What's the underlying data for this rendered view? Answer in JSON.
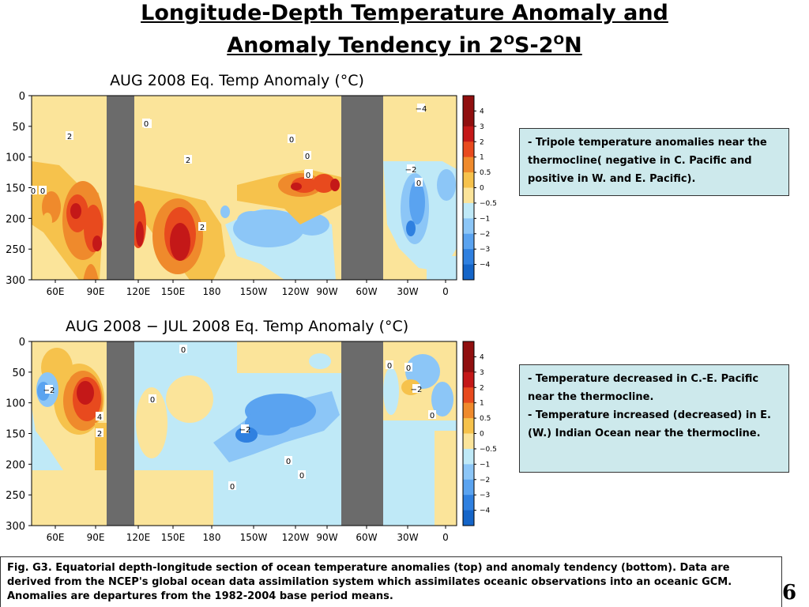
{
  "slide": {
    "title_line1": "Longitude-Depth Temperature Anomaly and",
    "title_line2_prefix": "Anomaly Tendency in 2",
    "title_sup_o1": "O",
    "title_mid": "S-2",
    "title_sup_o2": "O",
    "title_suffix": "N",
    "page_number": "6",
    "caption": "Fig. G3. Equatorial depth-longitude section of ocean temperature anomalies (top) and anomaly tendency (bottom). Data are derived from the NCEP's global ocean data assimilation system which assimilates oceanic observations into an oceanic GCM. Anomalies are departures from the 1982-2004 base period means."
  },
  "notes": {
    "top": [
      "- Tripole temperature anomalies near the thermocline( negative in C. Pacific and positive in W. and E. Pacific)."
    ],
    "bottom": [
      "- Temperature decreased in C.-E. Pacific near the thermocline.",
      "- Temperature increased (decreased) in E. (W.) Indian Ocean near the thermocline."
    ]
  },
  "colors": {
    "land": "#6b6b6b",
    "scale": [
      "#1565c8",
      "#2f80e0",
      "#5aa3f0",
      "#8cc6f7",
      "#bfe9f7",
      "#fbe49a",
      "#f6c24c",
      "#ef8a2c",
      "#e84a1e",
      "#c41818",
      "#900f0f"
    ]
  },
  "chart_data": [
    {
      "type": "heatmap",
      "title": "AUG 2008 Eq. Temp Anomaly (°C)",
      "xlabel": "",
      "ylabel": "",
      "x_ticks": [
        "60E",
        "90E",
        "120E",
        "150E",
        "180",
        "150W",
        "120W",
        "90W",
        "60W",
        "30W",
        "0"
      ],
      "y_ticks": [
        "0",
        "50",
        "100",
        "150",
        "200",
        "250",
        "300"
      ],
      "ylim": [
        0,
        300
      ],
      "colorbar_labels": [
        "4",
        "3",
        "2",
        "1",
        "0.5",
        "0",
        "−0.5",
        "−1",
        "−2",
        "−3",
        "−4"
      ],
      "contour_labels": [
        "2",
        "0",
        "2",
        "0",
        "2",
        "2",
        "0",
        "0",
        "0",
        "0",
        "−4",
        "−2",
        "0",
        "0"
      ],
      "grid": false
    },
    {
      "type": "heatmap",
      "title": "AUG 2008 − JUL 2008 Eq. Temp Anomaly (°C)",
      "xlabel": "",
      "ylabel": "",
      "x_ticks": [
        "60E",
        "90E",
        "120E",
        "150E",
        "180",
        "150W",
        "120W",
        "90W",
        "60W",
        "30W",
        "0"
      ],
      "y_ticks": [
        "0",
        "50",
        "100",
        "150",
        "200",
        "250",
        "300"
      ],
      "ylim": [
        0,
        300
      ],
      "colorbar_labels": [
        "4",
        "3",
        "2",
        "1",
        "0.5",
        "0",
        "−0.5",
        "−1",
        "−2",
        "−3",
        "−4"
      ],
      "contour_labels": [
        "−2",
        "4",
        "2",
        "0",
        "0",
        "0",
        "−2",
        "0",
        "0",
        "0",
        "0",
        "−2",
        "0"
      ],
      "grid": false
    }
  ]
}
